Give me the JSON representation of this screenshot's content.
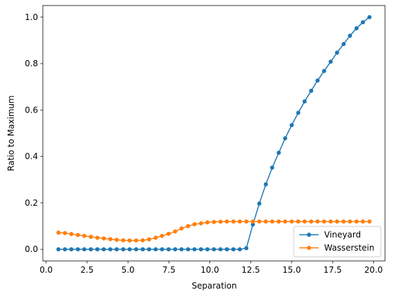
{
  "chart_data": {
    "type": "line",
    "xlabel": "Separation",
    "ylabel": "Ratio to Maximum",
    "x": [
      0.75,
      1.15,
      1.54,
      1.94,
      2.33,
      2.73,
      3.13,
      3.52,
      3.92,
      4.31,
      4.71,
      5.1,
      5.5,
      5.9,
      6.29,
      6.69,
      7.08,
      7.48,
      7.88,
      8.27,
      8.67,
      9.06,
      9.46,
      9.85,
      10.25,
      10.65,
      11.04,
      11.44,
      11.83,
      12.23,
      12.63,
      13.02,
      13.42,
      13.81,
      14.21,
      14.6,
      15.0,
      15.4,
      15.79,
      16.19,
      16.58,
      16.98,
      17.38,
      17.77,
      18.17,
      18.56,
      18.96,
      19.35,
      19.75
    ],
    "series": [
      {
        "name": "Vineyard",
        "color": "#1f77b4",
        "values": [
          0,
          0,
          0,
          0,
          0,
          0,
          0,
          0,
          0,
          0,
          0,
          0,
          0,
          0,
          0,
          0,
          0,
          0,
          0,
          0,
          0,
          0,
          0,
          0,
          0,
          0,
          0,
          0,
          0,
          0.005,
          0.107,
          0.197,
          0.28,
          0.352,
          0.416,
          0.478,
          0.535,
          0.588,
          0.637,
          0.683,
          0.727,
          0.768,
          0.808,
          0.847,
          0.884,
          0.92,
          0.952,
          0.978,
          1.0
        ]
      },
      {
        "name": "Wasserstein",
        "color": "#ff7f0e",
        "values": [
          0.072,
          0.07,
          0.066,
          0.062,
          0.058,
          0.054,
          0.05,
          0.047,
          0.044,
          0.041,
          0.039,
          0.038,
          0.038,
          0.039,
          0.043,
          0.05,
          0.058,
          0.067,
          0.077,
          0.09,
          0.1,
          0.108,
          0.112,
          0.116,
          0.118,
          0.119,
          0.12,
          0.12,
          0.12,
          0.12,
          0.12,
          0.12,
          0.12,
          0.12,
          0.12,
          0.12,
          0.12,
          0.12,
          0.12,
          0.12,
          0.12,
          0.12,
          0.12,
          0.12,
          0.12,
          0.12,
          0.12,
          0.12,
          0.12
        ]
      }
    ],
    "xlim": [
      -0.2,
      20.7
    ],
    "ylim": [
      -0.05,
      1.05
    ],
    "xticks": [
      {
        "value": 0,
        "label": "0.0"
      },
      {
        "value": 2.5,
        "label": "2.5"
      },
      {
        "value": 5,
        "label": "5.0"
      },
      {
        "value": 7.5,
        "label": "7.5"
      },
      {
        "value": 10,
        "label": "10.0"
      },
      {
        "value": 12.5,
        "label": "12.5"
      },
      {
        "value": 15,
        "label": "15.0"
      },
      {
        "value": 17.5,
        "label": "17.5"
      },
      {
        "value": 20,
        "label": "20.0"
      }
    ],
    "yticks": [
      {
        "value": 0,
        "label": "0.0"
      },
      {
        "value": 0.2,
        "label": "0.2"
      },
      {
        "value": 0.4,
        "label": "0.4"
      },
      {
        "value": 0.6,
        "label": "0.6"
      },
      {
        "value": 0.8,
        "label": "0.8"
      },
      {
        "value": 1,
        "label": "1.0"
      }
    ],
    "legend": "lower right"
  }
}
